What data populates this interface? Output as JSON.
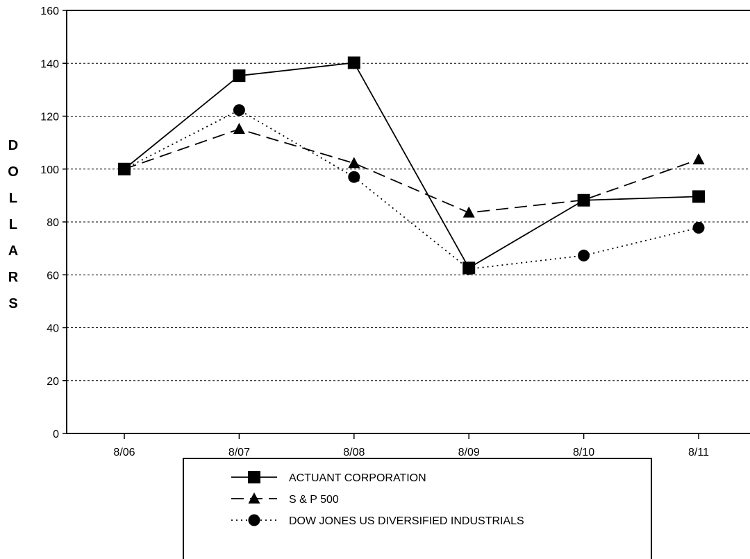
{
  "chart_data": {
    "type": "line",
    "title": "",
    "xlabel": "",
    "ylabel": "DOLLARS",
    "categories": [
      "8/06",
      "8/07",
      "8/08",
      "8/09",
      "8/10",
      "8/11"
    ],
    "ylim": [
      0,
      160
    ],
    "yticks": [
      0,
      20,
      40,
      60,
      80,
      100,
      120,
      140,
      160
    ],
    "grid": "horizontal-dotted",
    "legend_position": "bottom-center",
    "series": [
      {
        "name": "ACTUANT CORPORATION",
        "values": [
          100,
          135.3,
          140.2,
          62.6,
          88.2,
          89.6
        ],
        "marker": "square",
        "line_style": "solid",
        "color": "#000000"
      },
      {
        "name": "S & P 500",
        "values": [
          100,
          115.1,
          102.2,
          83.5,
          88.3,
          103.6
        ],
        "marker": "triangle",
        "line_style": "dash",
        "color": "#000000"
      },
      {
        "name": "DOW JONES US DIVERSIFIED INDUSTRIALS",
        "values": [
          100,
          122.3,
          97.0,
          62.2,
          67.3,
          77.8
        ],
        "marker": "circle",
        "line_style": "dot",
        "color": "#000000"
      }
    ]
  }
}
